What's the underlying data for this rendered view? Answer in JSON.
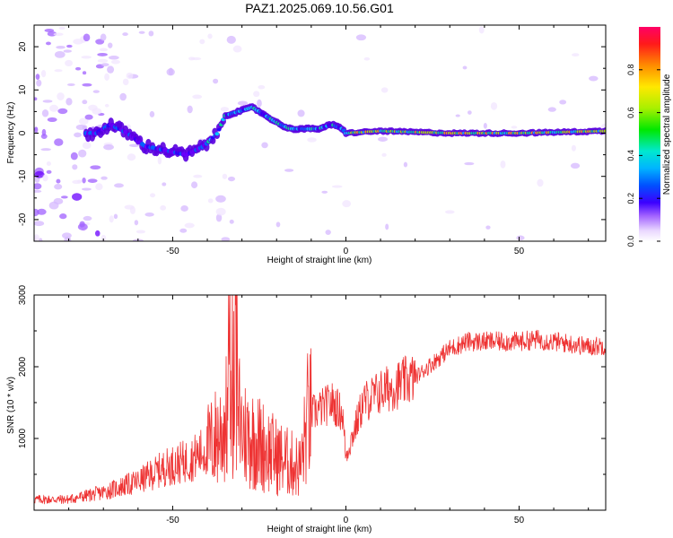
{
  "figure_title": "PAZ1.2025.069.10.56.G01",
  "chart_data": [
    {
      "type": "heatmap",
      "xlabel": "Height of straight line (km)",
      "ylabel": "Frequency (Hz)",
      "xlim": [
        -90,
        75
      ],
      "ylim": [
        -25,
        25
      ],
      "x_ticks": [
        "-50",
        "0",
        "50"
      ],
      "x_tick_values": [
        -50,
        0,
        50
      ],
      "y_ticks": [
        "-20",
        "-10",
        "0",
        "10",
        "20"
      ],
      "y_tick_values": [
        -20,
        -10,
        0,
        10,
        20
      ],
      "colorbar": {
        "label": "Normalized spectral amplitude",
        "range": [
          0,
          1
        ],
        "ticks": [
          "0.0",
          "0.2",
          "0.4",
          "0.6",
          "0.8"
        ],
        "tick_values": [
          0,
          0.2,
          0.4,
          0.6,
          0.8
        ]
      },
      "ridge": {
        "x": [
          -72,
          -68,
          -63,
          -58,
          -52,
          -46,
          -41,
          -37,
          -35,
          -31,
          -27,
          -23,
          -19,
          -16,
          -12,
          -8,
          -4,
          -1,
          0,
          10,
          30,
          50,
          75
        ],
        "y": [
          0,
          2,
          0,
          -3,
          -4,
          -5,
          -3,
          0,
          4,
          5,
          6,
          4,
          2,
          1,
          1,
          1,
          2,
          1,
          0,
          0.5,
          0,
          0,
          0.5
        ]
      },
      "grid": false,
      "legend": "none"
    },
    {
      "type": "line",
      "xlabel": "Height of straight line (km)",
      "ylabel": "SNR (10 * v/v)",
      "xlim": [
        -90,
        75
      ],
      "ylim": [
        0,
        3000
      ],
      "x_ticks": [
        "-50",
        "0",
        "50"
      ],
      "x_tick_values": [
        -50,
        0,
        50
      ],
      "y_ticks": [
        "1000",
        "2000",
        "3000"
      ],
      "y_tick_values": [
        1000,
        2000,
        3000
      ],
      "series": [
        {
          "color": "#ee3333",
          "x": [
            -90,
            -80,
            -70,
            -60,
            -52,
            -45,
            -40,
            -36,
            -34,
            -32,
            -30,
            -27,
            -24,
            -20,
            -16,
            -13,
            -11,
            -8,
            -4,
            -1,
            0,
            5,
            10,
            15,
            20,
            25,
            30,
            35,
            40,
            45,
            50,
            55,
            60,
            65,
            70,
            75
          ],
          "y": [
            150,
            150,
            250,
            400,
            600,
            700,
            850,
            1100,
            1300,
            1800,
            1100,
            1000,
            900,
            750,
            650,
            600,
            1300,
            1400,
            1500,
            1350,
            750,
            1500,
            1650,
            1750,
            1850,
            2050,
            2250,
            2350,
            2350,
            2350,
            2350,
            2380,
            2350,
            2320,
            2280,
            2300
          ]
        }
      ],
      "grid": false,
      "legend": "none"
    }
  ]
}
